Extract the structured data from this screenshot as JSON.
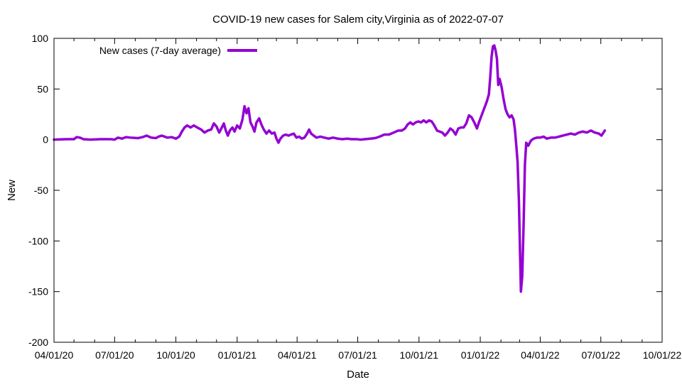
{
  "chart_data": {
    "type": "line",
    "title": "COVID-19 new cases for Salem city,Virginia as of 2022-07-07",
    "xlabel": "Date",
    "ylabel": "New",
    "xlim": [
      "2020-04-01",
      "2022-10-01"
    ],
    "ylim": [
      -200,
      100
    ],
    "grid": false,
    "legend_position": "top-left",
    "x_ticks": [
      "04/01/20",
      "07/01/20",
      "10/01/20",
      "01/01/21",
      "04/01/21",
      "07/01/21",
      "10/01/21",
      "01/01/22",
      "04/01/22",
      "07/01/22",
      "10/01/22"
    ],
    "y_ticks": [
      100,
      50,
      0,
      -50,
      -100,
      -150,
      -200
    ],
    "series": [
      {
        "name": "New cases (7-day average)",
        "color": "#9400D3",
        "points": [
          [
            "2020-04-01",
            0
          ],
          [
            "2020-04-20",
            0.5
          ],
          [
            "2020-05-01",
            0.5
          ],
          [
            "2020-05-05",
            2.5
          ],
          [
            "2020-05-10",
            2
          ],
          [
            "2020-05-15",
            0.5
          ],
          [
            "2020-05-25",
            0
          ],
          [
            "2020-06-10",
            0.5
          ],
          [
            "2020-06-25",
            0.5
          ],
          [
            "2020-07-01",
            0
          ],
          [
            "2020-07-06",
            2
          ],
          [
            "2020-07-12",
            1
          ],
          [
            "2020-07-18",
            2.5
          ],
          [
            "2020-07-25",
            2
          ],
          [
            "2020-08-05",
            1.5
          ],
          [
            "2020-08-12",
            2.5
          ],
          [
            "2020-08-18",
            4
          ],
          [
            "2020-08-25",
            2
          ],
          [
            "2020-09-01",
            1.5
          ],
          [
            "2020-09-05",
            3
          ],
          [
            "2020-09-10",
            4
          ],
          [
            "2020-09-18",
            2
          ],
          [
            "2020-09-25",
            2.5
          ],
          [
            "2020-10-01",
            1
          ],
          [
            "2020-10-06",
            3
          ],
          [
            "2020-10-10",
            8
          ],
          [
            "2020-10-14",
            12
          ],
          [
            "2020-10-18",
            14
          ],
          [
            "2020-10-23",
            12
          ],
          [
            "2020-10-28",
            14
          ],
          [
            "2020-11-02",
            12
          ],
          [
            "2020-11-08",
            10
          ],
          [
            "2020-11-13",
            7
          ],
          [
            "2020-11-18",
            9
          ],
          [
            "2020-11-23",
            10
          ],
          [
            "2020-11-27",
            16
          ],
          [
            "2020-12-01",
            13
          ],
          [
            "2020-12-05",
            7
          ],
          [
            "2020-12-09",
            12
          ],
          [
            "2020-12-12",
            16
          ],
          [
            "2020-12-15",
            9
          ],
          [
            "2020-12-18",
            4
          ],
          [
            "2020-12-21",
            9
          ],
          [
            "2020-12-25",
            12
          ],
          [
            "2020-12-28",
            8
          ],
          [
            "2021-01-01",
            14
          ],
          [
            "2021-01-05",
            11
          ],
          [
            "2021-01-09",
            20
          ],
          [
            "2021-01-12",
            33
          ],
          [
            "2021-01-15",
            26
          ],
          [
            "2021-01-18",
            31
          ],
          [
            "2021-01-21",
            17
          ],
          [
            "2021-01-24",
            13
          ],
          [
            "2021-01-27",
            8
          ],
          [
            "2021-01-30",
            17
          ],
          [
            "2021-02-03",
            21
          ],
          [
            "2021-02-07",
            14
          ],
          [
            "2021-02-10",
            10
          ],
          [
            "2021-02-14",
            6
          ],
          [
            "2021-02-18",
            9
          ],
          [
            "2021-02-22",
            6
          ],
          [
            "2021-02-26",
            7
          ],
          [
            "2021-03-01",
            1
          ],
          [
            "2021-03-04",
            -3
          ],
          [
            "2021-03-07",
            1
          ],
          [
            "2021-03-11",
            4
          ],
          [
            "2021-03-15",
            5
          ],
          [
            "2021-03-19",
            4
          ],
          [
            "2021-03-23",
            5
          ],
          [
            "2021-03-27",
            6
          ],
          [
            "2021-03-31",
            2
          ],
          [
            "2021-04-04",
            3
          ],
          [
            "2021-04-08",
            1
          ],
          [
            "2021-04-12",
            2
          ],
          [
            "2021-04-16",
            6
          ],
          [
            "2021-04-19",
            10
          ],
          [
            "2021-04-22",
            6
          ],
          [
            "2021-04-26",
            4
          ],
          [
            "2021-04-30",
            2
          ],
          [
            "2021-05-06",
            3
          ],
          [
            "2021-05-12",
            2
          ],
          [
            "2021-05-18",
            1
          ],
          [
            "2021-05-25",
            2
          ],
          [
            "2021-06-01",
            1
          ],
          [
            "2021-06-08",
            0.5
          ],
          [
            "2021-06-15",
            1
          ],
          [
            "2021-06-22",
            0.5
          ],
          [
            "2021-06-29",
            0.5
          ],
          [
            "2021-07-05",
            0
          ],
          [
            "2021-07-12",
            0.5
          ],
          [
            "2021-07-20",
            1
          ],
          [
            "2021-07-27",
            1.5
          ],
          [
            "2021-08-03",
            3
          ],
          [
            "2021-08-10",
            5
          ],
          [
            "2021-08-17",
            5
          ],
          [
            "2021-08-24",
            7
          ],
          [
            "2021-08-31",
            9
          ],
          [
            "2021-09-05",
            9
          ],
          [
            "2021-09-10",
            11
          ],
          [
            "2021-09-14",
            15
          ],
          [
            "2021-09-18",
            17
          ],
          [
            "2021-09-22",
            15
          ],
          [
            "2021-09-26",
            17
          ],
          [
            "2021-09-30",
            18
          ],
          [
            "2021-10-04",
            17
          ],
          [
            "2021-10-08",
            19
          ],
          [
            "2021-10-12",
            17
          ],
          [
            "2021-10-16",
            19
          ],
          [
            "2021-10-20",
            18
          ],
          [
            "2021-10-24",
            14
          ],
          [
            "2021-10-28",
            9
          ],
          [
            "2021-11-01",
            8
          ],
          [
            "2021-11-05",
            7
          ],
          [
            "2021-11-09",
            4
          ],
          [
            "2021-11-13",
            7
          ],
          [
            "2021-11-17",
            11
          ],
          [
            "2021-11-21",
            9
          ],
          [
            "2021-11-25",
            5
          ],
          [
            "2021-11-29",
            11
          ],
          [
            "2021-12-03",
            12
          ],
          [
            "2021-12-07",
            12
          ],
          [
            "2021-12-11",
            16
          ],
          [
            "2021-12-15",
            24
          ],
          [
            "2021-12-19",
            22
          ],
          [
            "2021-12-23",
            17
          ],
          [
            "2021-12-27",
            11
          ],
          [
            "2021-12-30",
            17
          ],
          [
            "2022-01-03",
            24
          ],
          [
            "2022-01-07",
            31
          ],
          [
            "2022-01-11",
            38
          ],
          [
            "2022-01-14",
            45
          ],
          [
            "2022-01-16",
            62
          ],
          [
            "2022-01-18",
            82
          ],
          [
            "2022-01-20",
            92
          ],
          [
            "2022-01-22",
            93
          ],
          [
            "2022-01-24",
            88
          ],
          [
            "2022-01-26",
            80
          ],
          [
            "2022-01-28",
            54
          ],
          [
            "2022-01-30",
            60
          ],
          [
            "2022-02-02",
            52
          ],
          [
            "2022-02-05",
            40
          ],
          [
            "2022-02-08",
            30
          ],
          [
            "2022-02-11",
            25
          ],
          [
            "2022-02-14",
            22
          ],
          [
            "2022-02-17",
            24
          ],
          [
            "2022-02-20",
            20
          ],
          [
            "2022-02-22",
            10
          ],
          [
            "2022-02-24",
            -5
          ],
          [
            "2022-02-26",
            -22
          ],
          [
            "2022-02-28",
            -60
          ],
          [
            "2022-03-02",
            -120
          ],
          [
            "2022-03-03",
            -150
          ],
          [
            "2022-03-05",
            -135
          ],
          [
            "2022-03-07",
            -85
          ],
          [
            "2022-03-09",
            -25
          ],
          [
            "2022-03-11",
            -3
          ],
          [
            "2022-03-14",
            -6
          ],
          [
            "2022-03-18",
            -1
          ],
          [
            "2022-03-22",
            1
          ],
          [
            "2022-03-27",
            2
          ],
          [
            "2022-04-01",
            2
          ],
          [
            "2022-04-06",
            3
          ],
          [
            "2022-04-11",
            1
          ],
          [
            "2022-04-17",
            2
          ],
          [
            "2022-04-23",
            2
          ],
          [
            "2022-04-29",
            3
          ],
          [
            "2022-05-05",
            4
          ],
          [
            "2022-05-11",
            5
          ],
          [
            "2022-05-17",
            6
          ],
          [
            "2022-05-23",
            5
          ],
          [
            "2022-05-29",
            7
          ],
          [
            "2022-06-04",
            8
          ],
          [
            "2022-06-10",
            7
          ],
          [
            "2022-06-16",
            9
          ],
          [
            "2022-06-22",
            7
          ],
          [
            "2022-06-28",
            6
          ],
          [
            "2022-07-02",
            4
          ],
          [
            "2022-07-05",
            7
          ],
          [
            "2022-07-07",
            9
          ]
        ]
      }
    ]
  }
}
